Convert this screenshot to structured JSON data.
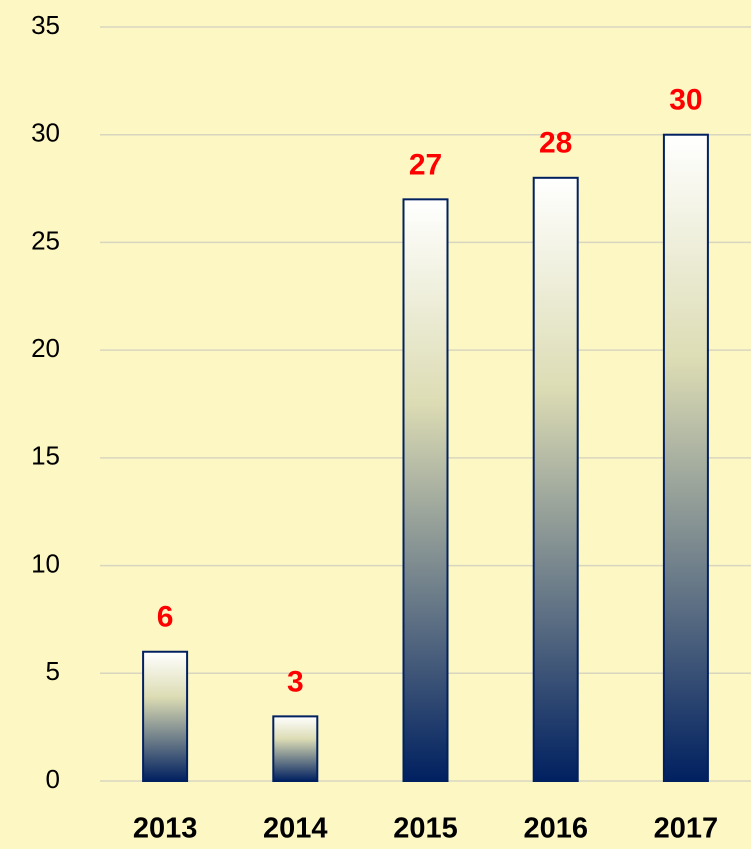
{
  "chart_data": {
    "type": "bar",
    "categories": [
      "2013",
      "2014",
      "2015",
      "2016",
      "2017"
    ],
    "values": [
      6,
      3,
      27,
      28,
      30
    ],
    "color": "#002060",
    "label_color": "#ff0000",
    "ylim": [
      0,
      35
    ],
    "yticks": [
      0,
      5,
      10,
      15,
      20,
      25,
      30,
      35
    ],
    "grid": true
  }
}
